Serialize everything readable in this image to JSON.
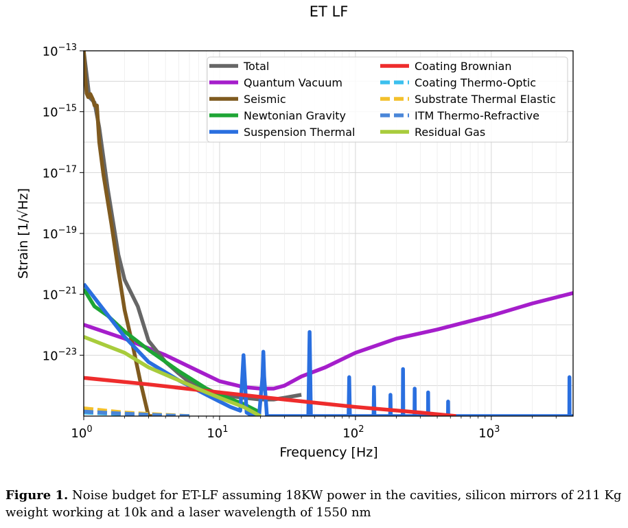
{
  "chart_data": {
    "type": "line",
    "title": "ET LF",
    "xlabel": "Frequency [Hz]",
    "ylabel": "Strain [1/√Hz]",
    "x_scale": "log",
    "y_scale": "log",
    "xlim": [
      1,
      4000
    ],
    "ylim": [
      1e-25,
      1e-13
    ],
    "x_ticks": [
      {
        "value": 1,
        "base": "10",
        "exp": "0"
      },
      {
        "value": 10,
        "base": "10",
        "exp": "1"
      },
      {
        "value": 100,
        "base": "10",
        "exp": "2"
      },
      {
        "value": 1000,
        "base": "10",
        "exp": "3"
      }
    ],
    "y_ticks": [
      {
        "value": 1e-23,
        "base": "10",
        "exp": "−23"
      },
      {
        "value": 1e-21,
        "base": "10",
        "exp": "−21"
      },
      {
        "value": 1e-19,
        "base": "10",
        "exp": "−19"
      },
      {
        "value": 1e-17,
        "base": "10",
        "exp": "−17"
      },
      {
        "value": 1e-15,
        "base": "10",
        "exp": "−15"
      },
      {
        "value": 1e-13,
        "base": "10",
        "exp": "−13"
      }
    ],
    "grid": true,
    "legend_position": "top-right",
    "series": [
      {
        "name": "Total",
        "color": "#666666",
        "style": "solid",
        "x": [
          1.0,
          1.1,
          1.2,
          1.3,
          1.5,
          1.8,
          2.0,
          2.5,
          3.0,
          4.0,
          5.0,
          6.0,
          8.0,
          10.0,
          15.0,
          20.0,
          25.0,
          30.0,
          40.0
        ],
        "y": [
          1e-13,
          3e-15,
          2e-15,
          3e-16,
          3e-18,
          2e-20,
          3e-21,
          4e-22,
          3e-23,
          6e-24,
          2.5e-24,
          1.3e-24,
          8e-25,
          5e-25,
          4e-25,
          3.5e-25,
          3.5e-25,
          4e-25,
          5e-25
        ]
      },
      {
        "name": "Quantum Vacuum",
        "color": "#a51ecb",
        "style": "solid",
        "x": [
          1,
          2,
          4,
          7,
          10,
          15,
          20,
          25,
          30,
          40,
          60,
          100,
          200,
          400,
          1000,
          2000,
          4000
        ],
        "y": [
          1e-22,
          3.5e-23,
          1e-23,
          3e-24,
          1.4e-24,
          9e-25,
          8e-25,
          8e-25,
          1e-24,
          2e-24,
          4e-24,
          1.2e-23,
          3.5e-23,
          7e-23,
          2e-22,
          5e-22,
          1.1e-21
        ]
      },
      {
        "name": "Seismic",
        "color": "#7f5a1f",
        "style": "solid",
        "x": [
          1.0,
          1.02,
          1.05,
          1.08,
          1.12,
          1.17,
          1.2,
          1.25,
          1.3,
          1.4,
          1.6,
          1.8,
          2.0,
          2.3,
          2.6,
          3.0,
          3.3
        ],
        "y": [
          1e-13,
          2e-14,
          4e-15,
          3e-15,
          3.8e-15,
          2.5e-15,
          1.6e-15,
          1.6e-15,
          1e-16,
          8e-18,
          2e-19,
          6e-21,
          3e-22,
          2e-23,
          1.5e-24,
          1e-25,
          1e-25
        ]
      },
      {
        "name": "Newtonian Gravity",
        "color": "#1ea535",
        "style": "solid",
        "x": [
          1,
          1.2,
          1.5,
          2,
          3,
          5,
          8,
          10,
          15,
          20
        ],
        "y": [
          1.5e-21,
          4e-22,
          2e-22,
          6e-23,
          1.5e-23,
          3e-24,
          8e-25,
          5e-25,
          2.5e-25,
          1.3e-25
        ]
      },
      {
        "name": "Suspension Thermal",
        "color": "#2a6fdf",
        "style": "solid",
        "x": [
          1,
          2,
          3,
          5,
          8,
          10,
          12,
          14.2,
          14.7,
          15,
          15.3,
          15.8,
          17,
          19.5,
          20.7,
          21,
          21.3,
          22.3,
          25,
          30,
          40,
          45,
          46,
          47,
          48.5,
          52,
          60,
          80,
          89,
          90,
          91,
          95,
          130,
          136,
          137,
          138,
          140,
          175,
          180,
          181,
          182,
          185,
          210,
          223,
          224,
          225,
          228,
          260,
          272,
          273,
          274,
          278,
          330,
          342,
          343,
          344,
          348,
          470,
          480,
          481,
          482,
          487,
          800,
          3700,
          3750,
          3760,
          3770,
          3800,
          4000
        ],
        "y": [
          2.2e-21,
          4e-23,
          6e-24,
          1.5e-24,
          5e-25,
          3e-25,
          2e-25,
          1.5e-25,
          2e-24,
          1e-23,
          2e-24,
          1.3e-25,
          1.1e-25,
          1e-25,
          2e-24,
          1.3e-23,
          2e-24,
          1e-25,
          1e-25,
          1e-25,
          1e-25,
          1e-25,
          5.8e-23,
          1e-25,
          1e-25,
          1e-25,
          1e-25,
          1e-25,
          1e-25,
          1.9e-24,
          1e-25,
          1e-25,
          1e-25,
          1e-25,
          9e-25,
          1e-25,
          1e-25,
          1e-25,
          1e-25,
          5e-25,
          1e-25,
          1e-25,
          1e-25,
          1e-25,
          3.5e-24,
          1e-25,
          1e-25,
          1e-25,
          1e-25,
          8e-25,
          1e-25,
          1e-25,
          1e-25,
          1e-25,
          6e-25,
          1e-25,
          1e-25,
          1e-25,
          1e-25,
          3e-25,
          1e-25,
          1e-25,
          1e-25,
          1e-25,
          1e-25,
          1.9e-24,
          1e-25,
          1e-25,
          1e-25
        ]
      },
      {
        "name": "Coating Brownian",
        "color": "#ee2c2c",
        "style": "solid",
        "x": [
          1,
          3,
          10,
          30,
          100,
          300,
          550
        ],
        "y": [
          1.8e-24,
          1.1e-24,
          6e-25,
          3.5e-25,
          2e-25,
          1.3e-25,
          1e-25
        ]
      },
      {
        "name": "Coating Thermo-Optic",
        "color": "#3cc0ee",
        "style": "dashed",
        "x": [
          1,
          2,
          4,
          6
        ],
        "y": [
          1.3e-25,
          1.15e-25,
          1.05e-25,
          1e-25
        ]
      },
      {
        "name": "Substrate Thermal Elastic",
        "color": "#f3c02c",
        "style": "dashed",
        "x": [
          1,
          2,
          4,
          6
        ],
        "y": [
          1.8e-25,
          1.3e-25,
          1.1e-25,
          1e-25
        ]
      },
      {
        "name": "ITM Thermo-Refractive",
        "color": "#4a86d8",
        "style": "dashed",
        "x": [
          1,
          2,
          4,
          6
        ],
        "y": [
          1.4e-25,
          1.2e-25,
          1.05e-25,
          1e-25
        ]
      },
      {
        "name": "Residual Gas",
        "color": "#a8cc3c",
        "style": "solid",
        "x": [
          1,
          2,
          3,
          5,
          8,
          10,
          15,
          20
        ],
        "y": [
          4e-23,
          1.2e-23,
          4e-24,
          1.5e-24,
          6e-25,
          4e-25,
          2e-25,
          1e-25
        ]
      }
    ]
  },
  "caption": {
    "label": "Figure 1.",
    "text": " Noise budget for ET-LF assuming 18KW power in the cavities, silicon mirrors of 211 Kg weight working at 10k and a laser wavelength of 1550 nm"
  }
}
